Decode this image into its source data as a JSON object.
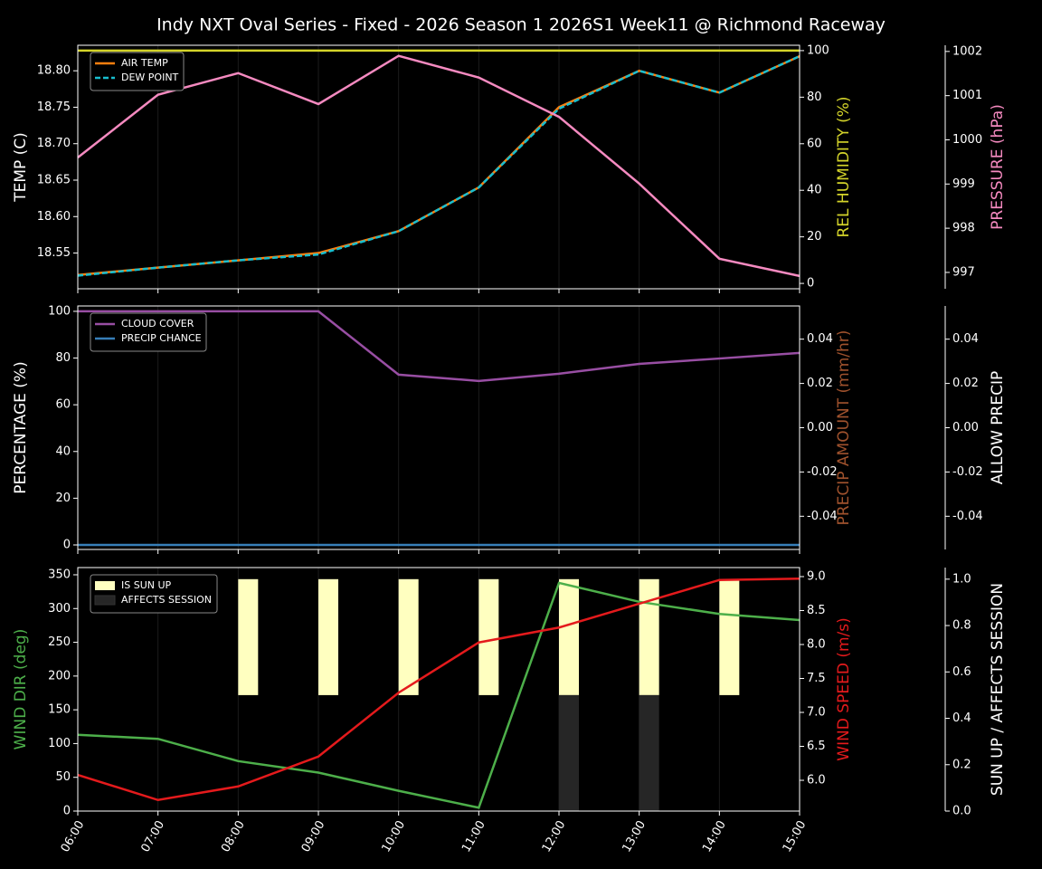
{
  "chart_data": [
    {
      "type": "line",
      "title": "Indy NXT Oval Series - Fixed - 2026 Season 1 2026S1 Week11 @ Richmond Raceway",
      "ylabel": "TEMP (C)",
      "ylabel_color": "#ffffff",
      "ylim": [
        18.501,
        18.835
      ],
      "yticks": [
        18.55,
        {
          "value": 18.6,
          "label": "18.60"
        },
        18.65,
        {
          "value": 18.7,
          "label": "18.70"
        },
        18.75,
        {
          "value": 18.8,
          "label": "18.80"
        }
      ],
      "y2label": "REL HUMIDITY (%)",
      "y2label_color": "#d4d42a",
      "y2lim": [
        -2.3,
        102.3
      ],
      "y2ticks": [
        0,
        20,
        40,
        60,
        80,
        100
      ],
      "y3label": "PRESSURE (hPa)",
      "y3label_color": "#f58ac0",
      "y3lim": [
        996.63,
        1002.14
      ],
      "y3ticks": [
        997,
        998,
        999,
        1000,
        1001,
        1002
      ],
      "legend": "upper left",
      "grid": true,
      "series": [
        {
          "name": "AIR TEMP",
          "color": "#ff7f0e",
          "axis": "y",
          "values": [
            18.52,
            18.53,
            18.54,
            18.55,
            18.58,
            18.64,
            18.75,
            18.8,
            18.77,
            18.82
          ]
        },
        {
          "name": "DEW POINT",
          "color": "#17becf",
          "axis": "y",
          "dash": true,
          "values": [
            18.519,
            18.53,
            18.54,
            18.548,
            18.58,
            18.64,
            18.748,
            18.8,
            18.77,
            18.82
          ]
        },
        {
          "color": "#d4d42a",
          "axis": "y2",
          "values": [
            100,
            100,
            100,
            100,
            100,
            100,
            100,
            100,
            100,
            100
          ]
        },
        {
          "color": "#f58ac0",
          "axis": "y3",
          "values": [
            999.6,
            1001.02,
            1001.51,
            1000.81,
            1001.9,
            1001.41,
            1000.52,
            999.01,
            997.31,
            996.92
          ]
        }
      ]
    },
    {
      "type": "line",
      "ylabel": "PERCENTAGE (%)",
      "ylabel_color": "#ffffff",
      "ylim": [
        -1.94,
        102.3
      ],
      "yticks": [
        0,
        20,
        40,
        60,
        80,
        100
      ],
      "y2label": "PRECIP AMOUNT (mm/hr)",
      "y2label_color": "#a0522d",
      "y2lim": [
        -0.055,
        0.055
      ],
      "y2ticks": [
        -0.04,
        -0.02,
        {
          "value": 0,
          "label": "0.00"
        },
        0.02,
        0.04
      ],
      "y3label": "ALLOW PRECIP",
      "y3label_color": "#ffffff",
      "y3lim": [
        -0.055,
        0.055
      ],
      "y3ticks": [
        -0.04,
        -0.02,
        {
          "value": 0,
          "label": "0.00"
        },
        0.02,
        0.04
      ],
      "legend": "upper left",
      "grid": true,
      "series": [
        {
          "name": "CLOUD COVER",
          "color": "#984ea3",
          "axis": "y",
          "values": [
            100,
            100,
            100,
            100,
            72.9,
            70.2,
            73.3,
            77.5,
            79.8,
            82.2
          ]
        },
        {
          "name": "PRECIP CHANCE",
          "color": "#377eb8",
          "axis": "y",
          "values": [
            0,
            0,
            0,
            0,
            0,
            0,
            0,
            0,
            0,
            0
          ]
        }
      ]
    },
    {
      "type": "line",
      "categories": [
        "06:00",
        "07:00",
        "08:00",
        "09:00",
        "10:00",
        "11:00",
        "12:00",
        "13:00",
        "14:00",
        "15:00"
      ],
      "ylabel": "WIND DIR (deg)",
      "ylabel_color": "#4daf4a",
      "ylim": [
        0,
        360.7
      ],
      "yticks": [
        0,
        50,
        100,
        150,
        200,
        250,
        300,
        350
      ],
      "y2label": "WIND SPEED (m/s)",
      "y2label_color": "#e41a1c",
      "y2lim": [
        5.547,
        9.133
      ],
      "y2ticks": [
        {
          "value": 6,
          "label": "6.0"
        },
        6.5,
        {
          "value": 7,
          "label": "7.0"
        },
        7.5,
        {
          "value": 8,
          "label": "8.0"
        },
        8.5,
        {
          "value": 9,
          "label": "9.0"
        }
      ],
      "y3label": "SUN UP / AFFECTS SESSION",
      "y3label_color": "#ffffff",
      "y3lim": [
        0,
        1.05
      ],
      "y3ticks": [
        {
          "value": 0,
          "label": "0.0"
        },
        0.2,
        0.4,
        0.6,
        0.8,
        {
          "value": 1,
          "label": "1.0"
        }
      ],
      "legend": "upper left",
      "grid": true,
      "series": [
        {
          "name": "IS SUN UP",
          "type": "bar",
          "color": "#ffffc0",
          "axis": "y3",
          "part": "upper",
          "values": [
            0,
            0,
            1,
            1,
            1,
            1,
            1,
            1,
            1,
            0
          ]
        },
        {
          "name": "AFFECTS SESSION",
          "type": "bar",
          "color": "#262626",
          "axis": "y3",
          "part": "lower",
          "values": [
            0,
            0,
            0,
            0,
            0,
            0,
            1,
            1,
            0,
            0
          ]
        },
        {
          "color": "#4daf4a",
          "axis": "y",
          "values": [
            113,
            107,
            74,
            57,
            30,
            5,
            338,
            310,
            292,
            283
          ]
        },
        {
          "color": "#e41a1c",
          "axis": "y2",
          "values": [
            6.08,
            5.71,
            5.91,
            6.35,
            7.29,
            8.03,
            8.25,
            8.6,
            8.95,
            8.97
          ]
        }
      ]
    }
  ]
}
